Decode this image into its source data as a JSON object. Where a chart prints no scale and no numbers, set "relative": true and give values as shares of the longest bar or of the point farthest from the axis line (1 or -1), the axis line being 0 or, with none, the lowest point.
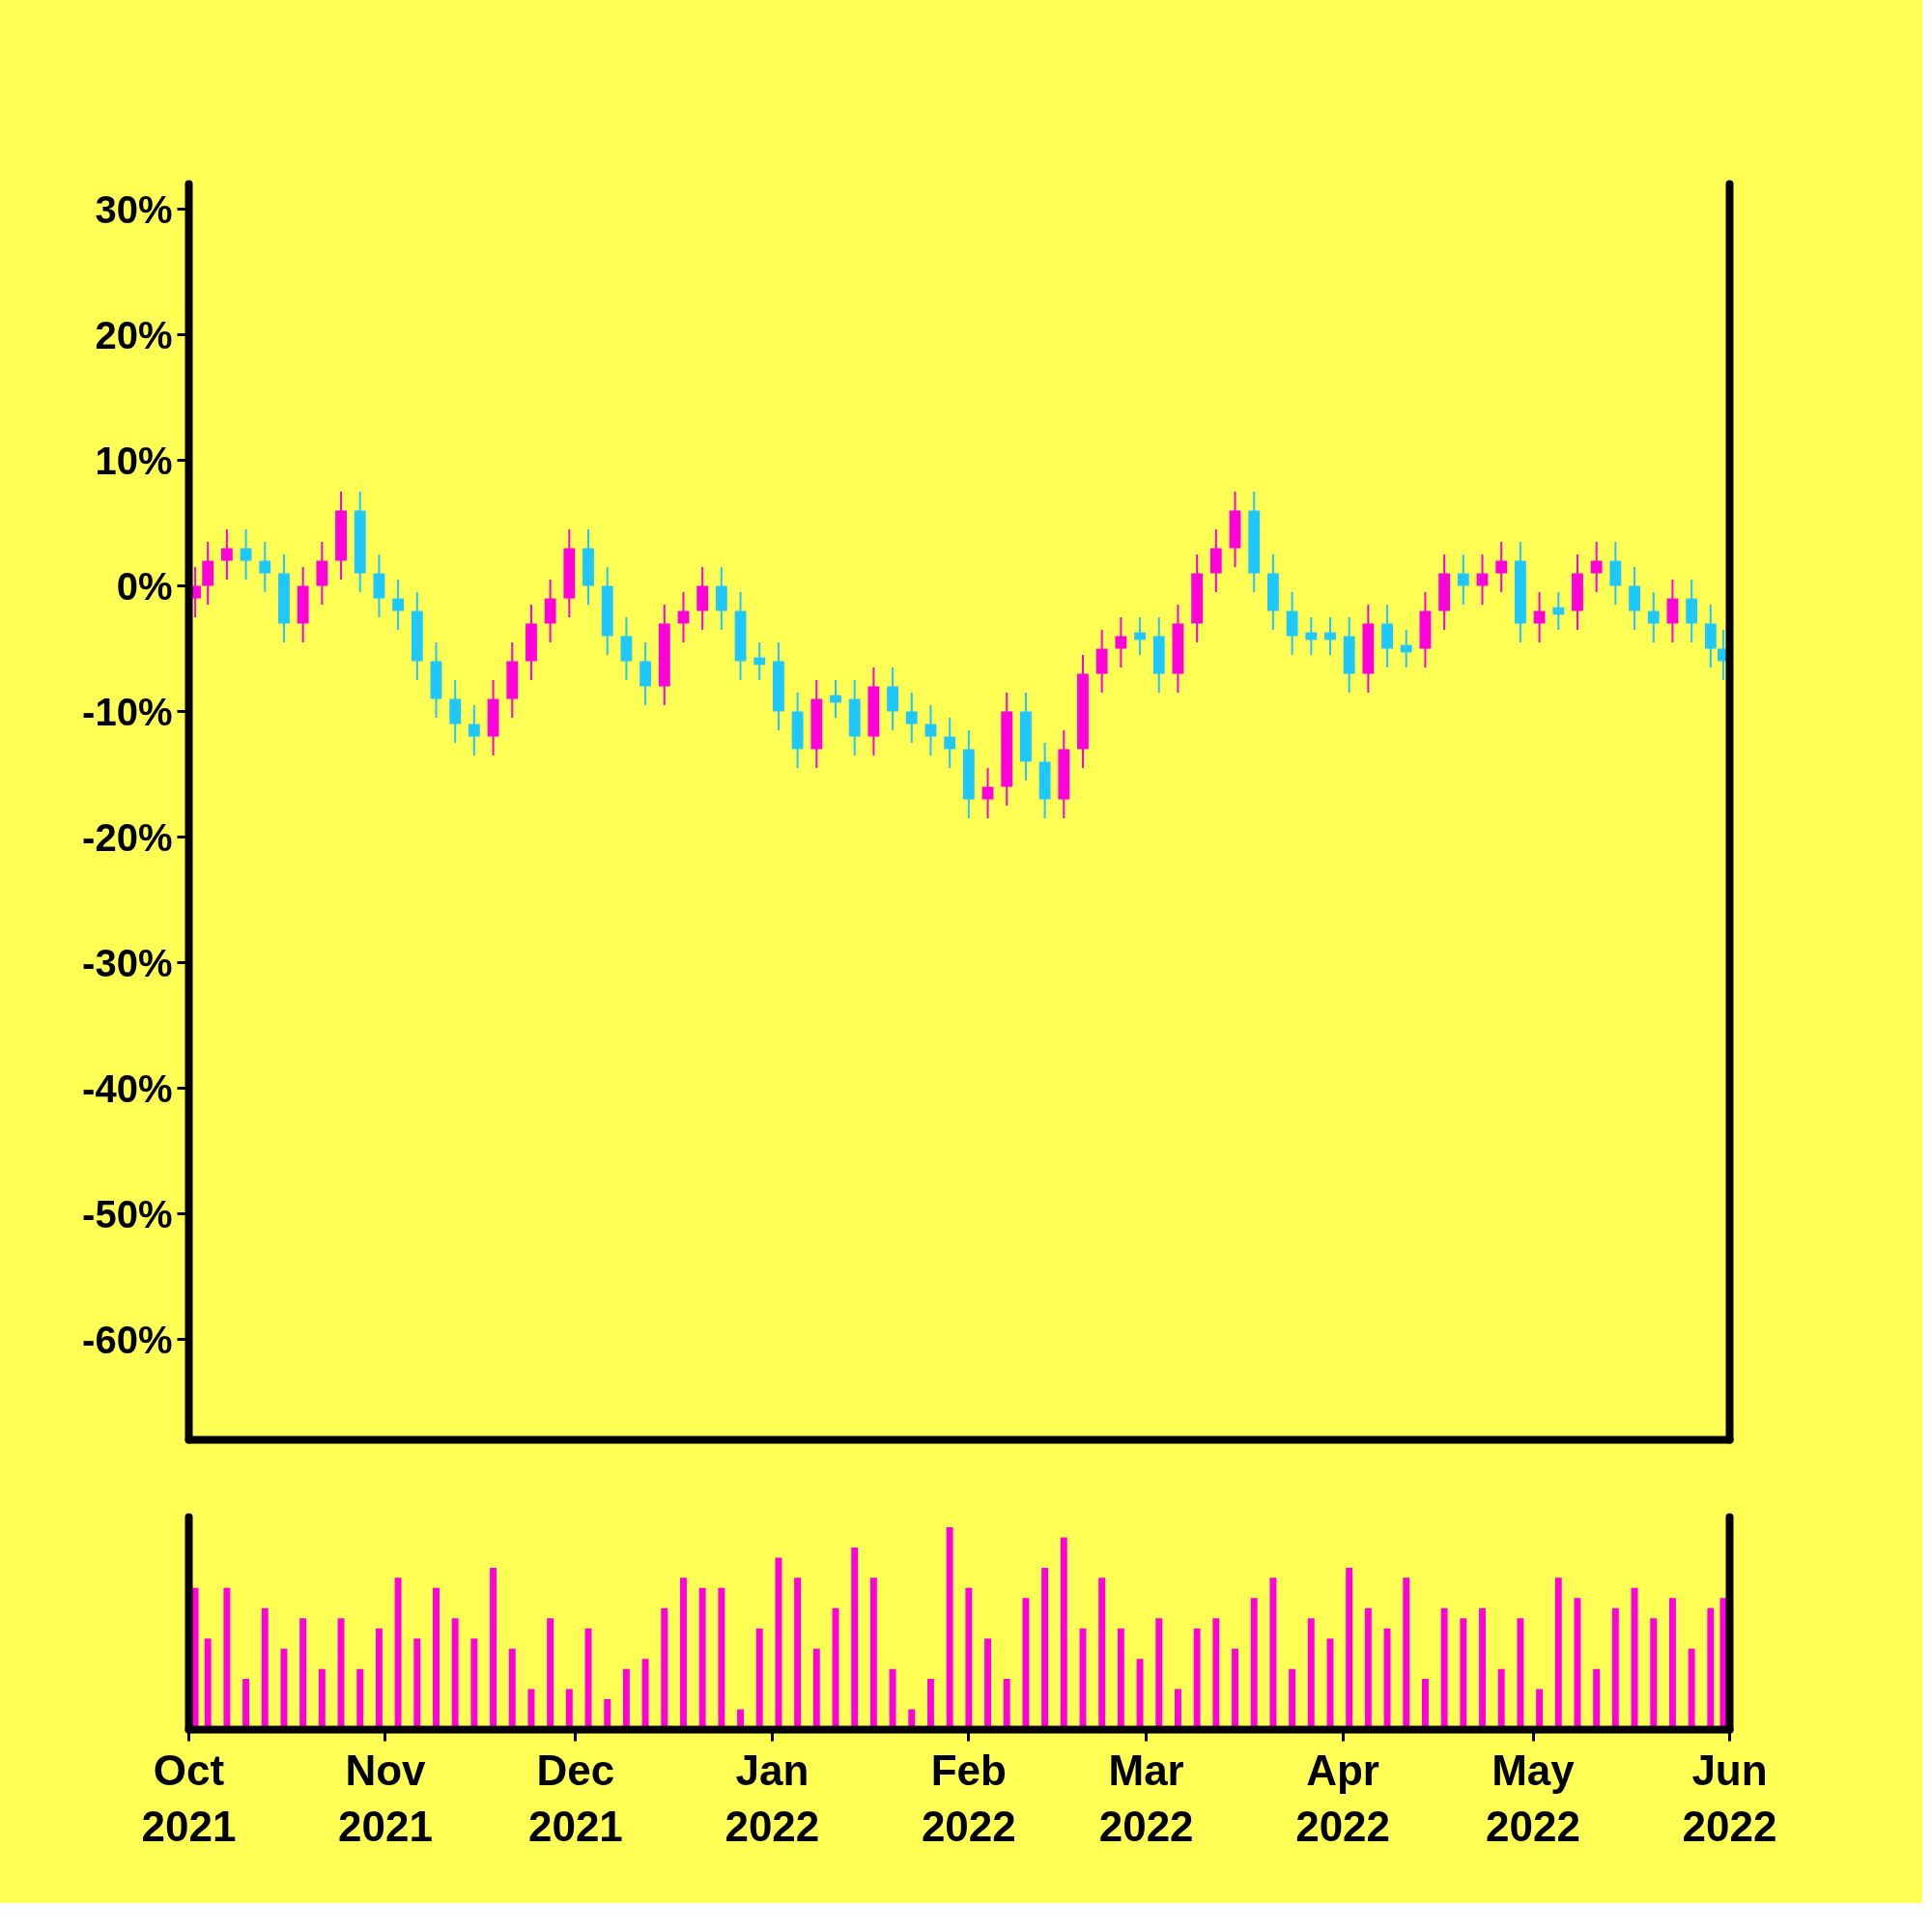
{
  "chart_data": [
    {
      "type": "candlestick",
      "x": [
        "2021-10-02",
        "2021-10-04",
        "2021-10-07",
        "2021-10-10",
        "2021-10-13",
        "2021-10-16",
        "2021-10-19",
        "2021-10-22",
        "2021-10-25",
        "2021-10-28",
        "2021-10-31",
        "2021-11-03",
        "2021-11-06",
        "2021-11-09",
        "2021-11-12",
        "2021-11-15",
        "2021-11-18",
        "2021-11-21",
        "2021-11-24",
        "2021-11-27",
        "2021-11-30",
        "2021-12-03",
        "2021-12-06",
        "2021-12-09",
        "2021-12-12",
        "2021-12-15",
        "2021-12-18",
        "2021-12-21",
        "2021-12-24",
        "2021-12-27",
        "2021-12-30",
        "2022-01-02",
        "2022-01-05",
        "2022-01-08",
        "2022-01-11",
        "2022-01-14",
        "2022-01-17",
        "2022-01-20",
        "2022-01-23",
        "2022-01-26",
        "2022-01-29",
        "2022-02-01",
        "2022-02-04",
        "2022-02-07",
        "2022-02-10",
        "2022-02-13",
        "2022-02-16",
        "2022-02-19",
        "2022-02-22",
        "2022-02-25",
        "2022-02-28",
        "2022-03-03",
        "2022-03-06",
        "2022-03-09",
        "2022-03-12",
        "2022-03-15",
        "2022-03-18",
        "2022-03-21",
        "2022-03-24",
        "2022-03-27",
        "2022-03-30",
        "2022-04-02",
        "2022-04-05",
        "2022-04-08",
        "2022-04-11",
        "2022-04-14",
        "2022-04-17",
        "2022-04-20",
        "2022-04-23",
        "2022-04-26",
        "2022-04-29",
        "2022-05-02",
        "2022-05-05",
        "2022-05-08",
        "2022-05-11",
        "2022-05-14",
        "2022-05-17",
        "2022-05-20",
        "2022-05-23",
        "2022-05-26",
        "2022-05-29",
        "2022-05-31"
      ],
      "ohlc": [
        [
          -1,
          1.5,
          -2.5,
          0
        ],
        [
          0,
          3.5,
          -1.5,
          2
        ],
        [
          2,
          4.5,
          0.5,
          3
        ],
        [
          3,
          4.5,
          0.5,
          2
        ],
        [
          2,
          3.5,
          -0.5,
          1
        ],
        [
          1,
          2.5,
          -4.5,
          -3
        ],
        [
          -3,
          1.5,
          -4.5,
          0
        ],
        [
          0,
          3.5,
          -1.5,
          2
        ],
        [
          2,
          7.5,
          0.5,
          6
        ],
        [
          6,
          7.5,
          -0.5,
          1
        ],
        [
          1,
          2.5,
          -2.5,
          -1
        ],
        [
          -1,
          0.5,
          -3.5,
          -2
        ],
        [
          -2,
          -0.5,
          -7.5,
          -6
        ],
        [
          -6,
          -4.5,
          -10.5,
          -9
        ],
        [
          -9,
          -7.5,
          -12.5,
          -11
        ],
        [
          -11,
          -9.5,
          -13.5,
          -12
        ],
        [
          -12,
          -7.5,
          -13.5,
          -9
        ],
        [
          -9,
          -4.5,
          -10.5,
          -6
        ],
        [
          -6,
          -1.5,
          -7.5,
          -3
        ],
        [
          -3,
          0.5,
          -4.5,
          -1
        ],
        [
          -1,
          4.5,
          -2.5,
          3
        ],
        [
          3,
          4.5,
          -1.5,
          0
        ],
        [
          0,
          1.5,
          -5.5,
          -4
        ],
        [
          -4,
          -2.5,
          -7.5,
          -6
        ],
        [
          -6,
          -4.5,
          -9.5,
          -8
        ],
        [
          -8,
          -1.5,
          -9.5,
          -3
        ],
        [
          -3,
          -0.5,
          -4.5,
          -2
        ],
        [
          -2,
          1.5,
          -3.5,
          0
        ],
        [
          0,
          1.5,
          -3.5,
          -2
        ],
        [
          -2,
          -0.5,
          -7.5,
          -6
        ],
        [
          -6,
          -4.5,
          -7.5,
          -6
        ],
        [
          -6,
          -4.5,
          -11.5,
          -10
        ],
        [
          -10,
          -8.5,
          -14.5,
          -13
        ],
        [
          -13,
          -7.5,
          -14.5,
          -9
        ],
        [
          -9,
          -7.5,
          -10.5,
          -9
        ],
        [
          -9,
          -7.5,
          -13.5,
          -12
        ],
        [
          -12,
          -6.5,
          -13.5,
          -8
        ],
        [
          -8,
          -6.5,
          -11.5,
          -10
        ],
        [
          -10,
          -8.5,
          -12.5,
          -11
        ],
        [
          -11,
          -9.5,
          -13.5,
          -12
        ],
        [
          -12,
          -10.5,
          -14.5,
          -13
        ],
        [
          -13,
          -11.5,
          -18.5,
          -17
        ],
        [
          -17,
          -14.5,
          -18.5,
          -16
        ],
        [
          -16,
          -8.5,
          -17.5,
          -10
        ],
        [
          -10,
          -8.5,
          -15.5,
          -14
        ],
        [
          -14,
          -12.5,
          -18.5,
          -17
        ],
        [
          -17,
          -11.5,
          -18.5,
          -13
        ],
        [
          -13,
          -5.5,
          -14.5,
          -7
        ],
        [
          -7,
          -3.5,
          -8.5,
          -5
        ],
        [
          -5,
          -2.5,
          -6.5,
          -4
        ],
        [
          -4,
          -2.5,
          -5.5,
          -4
        ],
        [
          -4,
          -2.5,
          -8.5,
          -7
        ],
        [
          -7,
          -1.5,
          -8.5,
          -3
        ],
        [
          -3,
          2.5,
          -4.5,
          1
        ],
        [
          1,
          4.5,
          -0.5,
          3
        ],
        [
          3,
          7.5,
          1.5,
          6
        ],
        [
          6,
          7.5,
          -0.5,
          1
        ],
        [
          1,
          2.5,
          -3.5,
          -2
        ],
        [
          -2,
          -0.5,
          -5.5,
          -4
        ],
        [
          -4,
          -2.5,
          -5.5,
          -4
        ],
        [
          -4,
          -2.5,
          -5.5,
          -4
        ],
        [
          -4,
          -2.5,
          -8.5,
          -7
        ],
        [
          -7,
          -1.5,
          -8.5,
          -3
        ],
        [
          -3,
          -1.5,
          -6.5,
          -5
        ],
        [
          -5,
          -3.5,
          -6.5,
          -5
        ],
        [
          -5,
          -0.5,
          -6.5,
          -2
        ],
        [
          -2,
          2.5,
          -3.5,
          1
        ],
        [
          1,
          2.5,
          -1.5,
          0
        ],
        [
          0,
          2.5,
          -1.5,
          1
        ],
        [
          1,
          3.5,
          -0.5,
          2
        ],
        [
          2,
          3.5,
          -4.5,
          -3
        ],
        [
          -3,
          -0.5,
          -4.5,
          -2
        ],
        [
          -2,
          -0.5,
          -3.5,
          -2
        ],
        [
          -2,
          2.5,
          -3.5,
          1
        ],
        [
          1,
          3.5,
          -0.5,
          2
        ],
        [
          2,
          3.5,
          -1.5,
          0
        ],
        [
          0,
          1.5,
          -3.5,
          -2
        ],
        [
          -2,
          -0.5,
          -4.5,
          -3
        ],
        [
          -3,
          0.5,
          -4.5,
          -1
        ],
        [
          -1,
          0.5,
          -4.5,
          -3
        ],
        [
          -3,
          -1.5,
          -6.5,
          -5
        ],
        [
          -5,
          -3.5,
          -7.5,
          -6
        ]
      ],
      "colors": [
        "#ff00dd",
        "#ff00dd",
        "#ff00dd",
        "#1ec8ff",
        "#1ec8ff",
        "#1ec8ff",
        "#ff00dd",
        "#ff00dd",
        "#ff00dd",
        "#1ec8ff",
        "#1ec8ff",
        "#1ec8ff",
        "#1ec8ff",
        "#1ec8ff",
        "#1ec8ff",
        "#1ec8ff",
        "#ff00dd",
        "#ff00dd",
        "#ff00dd",
        "#ff00dd",
        "#ff00dd",
        "#1ec8ff",
        "#1ec8ff",
        "#1ec8ff",
        "#1ec8ff",
        "#ff00dd",
        "#ff00dd",
        "#ff00dd",
        "#1ec8ff",
        "#1ec8ff",
        "#1ec8ff",
        "#1ec8ff",
        "#1ec8ff",
        "#ff00dd",
        "#1ec8ff",
        "#1ec8ff",
        "#ff00dd",
        "#1ec8ff",
        "#1ec8ff",
        "#1ec8ff",
        "#1ec8ff",
        "#1ec8ff",
        "#ff00dd",
        "#ff00dd",
        "#1ec8ff",
        "#1ec8ff",
        "#ff00dd",
        "#ff00dd",
        "#ff00dd",
        "#ff00dd",
        "#1ec8ff",
        "#1ec8ff",
        "#ff00dd",
        "#ff00dd",
        "#ff00dd",
        "#ff00dd",
        "#1ec8ff",
        "#1ec8ff",
        "#1ec8ff",
        "#1ec8ff",
        "#1ec8ff",
        "#1ec8ff",
        "#ff00dd",
        "#1ec8ff",
        "#1ec8ff",
        "#ff00dd",
        "#ff00dd",
        "#1ec8ff",
        "#ff00dd",
        "#ff00dd",
        "#1ec8ff",
        "#ff00dd",
        "#1ec8ff",
        "#ff00dd",
        "#ff00dd",
        "#1ec8ff",
        "#1ec8ff",
        "#1ec8ff",
        "#ff00dd",
        "#1ec8ff",
        "#1ec8ff",
        "#1ec8ff"
      ],
      "xlim": [
        "2021-10-01",
        "2022-06-01"
      ],
      "ylim": [
        -68,
        32
      ],
      "yticks": [
        {
          "value": 30,
          "label": "30%"
        },
        {
          "value": 20,
          "label": "20%"
        },
        {
          "value": 10,
          "label": "10%"
        },
        {
          "value": 0,
          "label": "0%"
        },
        {
          "value": -10,
          "label": "-10%"
        },
        {
          "value": -20,
          "label": "-20%"
        },
        {
          "value": -30,
          "label": "-30%"
        },
        {
          "value": -40,
          "label": "-40%"
        },
        {
          "value": -50,
          "label": "-50%"
        },
        {
          "value": -60,
          "label": "-60%"
        }
      ],
      "tick_labels": "y"
    },
    {
      "type": "bar",
      "relative": true,
      "color": "#ff00dd",
      "x": [
        "2021-10-02",
        "2021-10-04",
        "2021-10-07",
        "2021-10-10",
        "2021-10-13",
        "2021-10-16",
        "2021-10-19",
        "2021-10-22",
        "2021-10-25",
        "2021-10-28",
        "2021-10-31",
        "2021-11-03",
        "2021-11-06",
        "2021-11-09",
        "2021-11-12",
        "2021-11-15",
        "2021-11-18",
        "2021-11-21",
        "2021-11-24",
        "2021-11-27",
        "2021-11-30",
        "2021-12-03",
        "2021-12-06",
        "2021-12-09",
        "2021-12-12",
        "2021-12-15",
        "2021-12-18",
        "2021-12-21",
        "2021-12-24",
        "2021-12-27",
        "2021-12-30",
        "2022-01-02",
        "2022-01-05",
        "2022-01-08",
        "2022-01-11",
        "2022-01-14",
        "2022-01-17",
        "2022-01-20",
        "2022-01-23",
        "2022-01-26",
        "2022-01-29",
        "2022-02-01",
        "2022-02-04",
        "2022-02-07",
        "2022-02-10",
        "2022-02-13",
        "2022-02-16",
        "2022-02-19",
        "2022-02-22",
        "2022-02-25",
        "2022-02-28",
        "2022-03-03",
        "2022-03-06",
        "2022-03-09",
        "2022-03-12",
        "2022-03-15",
        "2022-03-18",
        "2022-03-21",
        "2022-03-24",
        "2022-03-27",
        "2022-03-30",
        "2022-04-02",
        "2022-04-05",
        "2022-04-08",
        "2022-04-11",
        "2022-04-14",
        "2022-04-17",
        "2022-04-20",
        "2022-04-23",
        "2022-04-26",
        "2022-04-29",
        "2022-05-02",
        "2022-05-05",
        "2022-05-08",
        "2022-05-11",
        "2022-05-14",
        "2022-05-17",
        "2022-05-20",
        "2022-05-23",
        "2022-05-26",
        "2022-05-29",
        "2022-05-31"
      ],
      "values": [
        0.7,
        0.45,
        0.7,
        0.25,
        0.6,
        0.4,
        0.55,
        0.3,
        0.55,
        0.3,
        0.5,
        0.75,
        0.45,
        0.7,
        0.55,
        0.45,
        0.8,
        0.4,
        0.2,
        0.55,
        0.2,
        0.5,
        0.15,
        0.3,
        0.35,
        0.6,
        0.75,
        0.7,
        0.7,
        0.1,
        0.5,
        0.85,
        0.75,
        0.4,
        0.6,
        0.9,
        0.75,
        0.3,
        0.1,
        0.25,
        1,
        0.7,
        0.45,
        0.25,
        0.65,
        0.8,
        0.95,
        0.5,
        0.75,
        0.5,
        0.35,
        0.55,
        0.2,
        0.5,
        0.55,
        0.4,
        0.65,
        0.75,
        0.3,
        0.55,
        0.45,
        0.8,
        0.6,
        0.5,
        0.75,
        0.25,
        0.6,
        0.55,
        0.6,
        0.3,
        0.55,
        0.2,
        0.75,
        0.65,
        0.3,
        0.6,
        0.7,
        0.55,
        0.65,
        0.4,
        0.6,
        0.65
      ],
      "xlim": [
        "2021-10-01",
        "2022-06-01"
      ],
      "xticks": [
        {
          "value": "2021-10-01",
          "label": "Oct\n2021"
        },
        {
          "value": "2021-11-01",
          "label": "Nov\n2021"
        },
        {
          "value": "2021-12-01",
          "label": "Dec\n2021"
        },
        {
          "value": "2022-01-01",
          "label": "Jan\n2022"
        },
        {
          "value": "2022-02-01",
          "label": "Feb\n2022"
        },
        {
          "value": "2022-03-01",
          "label": "Mar\n2022"
        },
        {
          "value": "2022-04-01",
          "label": "Apr\n2022"
        },
        {
          "value": "2022-05-01",
          "label": "May\n2022"
        },
        {
          "value": "2022-06-01",
          "label": "Jun\n2022"
        }
      ],
      "tick_labels": "x"
    }
  ]
}
